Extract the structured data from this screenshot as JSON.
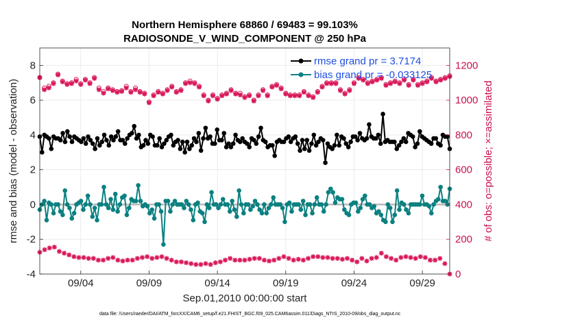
{
  "chart_data": {
    "type": "line",
    "title": "Northern Hemisphere 68860 / 69483 = 99.103%",
    "subtitle": "RADIOSONDE_V_WIND_COMPONENT @ 250 hPa",
    "xlabel": "Sep.01,2010 00:00:00 start",
    "ylabel": "rmse and bias (model - observation)",
    "ylabel_right": "# of obs: o=possible; ×=assimilated",
    "footer": "data file: /Users/raeder/DAI/ATM_forcXX/CAM6_setup/f.e21.FHIST_BGC.f09_025.CAM6assim.011/Diags_NTrS_2010-09/obs_diag_output.nc",
    "xlim": [
      0,
      30
    ],
    "ylim": [
      -4,
      9
    ],
    "ylim_right": [
      0,
      1300
    ],
    "grid": true,
    "legend_position": "top-right",
    "x_tick_values": [
      3,
      8,
      13,
      18,
      23,
      28
    ],
    "x_tick_labels": [
      "09/04",
      "09/09",
      "09/14",
      "09/19",
      "09/24",
      "09/29"
    ],
    "y_ticks": [
      -4,
      -2,
      0,
      2,
      4,
      6,
      8
    ],
    "y_ticks_right": [
      0,
      200,
      400,
      600,
      800,
      1000,
      1200
    ],
    "colors": {
      "rmse": "#000000",
      "bias": "#0b8080",
      "obs": "#d8185a",
      "zero_line": "#b8b8b8",
      "right_axis": "#c8104f",
      "legend_text": "#1f4fe0"
    },
    "series": [
      {
        "name": "rmse grand pr = 3.7174",
        "axis": "left",
        "values": [
          3.9,
          3.0,
          4.0,
          3.9,
          3.8,
          3.2,
          3.9,
          3.8,
          3.8,
          3.7,
          4.1,
          3.6,
          4.2,
          3.9,
          3.6,
          3.9,
          3.8,
          3.7,
          3.6,
          3.8,
          3.5,
          3.9,
          3.7,
          3.5,
          3.2,
          3.8,
          3.4,
          3.6,
          4.0,
          3.7,
          3.4,
          3.9,
          3.7,
          3.9,
          4.2,
          3.7,
          3.7,
          3.5,
          3.8,
          4.0,
          4.1,
          4.5,
          3.8,
          4.0,
          3.3,
          3.4,
          3.7,
          3.5,
          4.0,
          3.9,
          3.4,
          3.4,
          3.8,
          3.3,
          3.5,
          3.7,
          3.9,
          4.0,
          3.4,
          3.6,
          3.7,
          3.2,
          3.6,
          3.0,
          3.6,
          3.2,
          3.4,
          3.8,
          3.6,
          4.1,
          3.1,
          3.8,
          4.4,
          3.8,
          3.9,
          3.5,
          3.5,
          4.3,
          3.7,
          3.7,
          4.1,
          3.3,
          3.5,
          3.3,
          3.5,
          4.0,
          3.7,
          3.6,
          3.8,
          3.6,
          3.5,
          3.3,
          3.8,
          3.7,
          3.5,
          3.9,
          4.4,
          3.7,
          3.6,
          3.3,
          3.4,
          3.4,
          2.8,
          3.6,
          3.7,
          3.6,
          3.6,
          3.8,
          3.9,
          3.6,
          3.8,
          3.9,
          3.5,
          3.1,
          3.7,
          3.2,
          3.7,
          3.1,
          3.5,
          4.0,
          3.4,
          3.6,
          3.8,
          3.7,
          2.4,
          3.5,
          3.3,
          3.2,
          3.4,
          4.0,
          3.4,
          3.9,
          3.8,
          3.5,
          3.3,
          3.6,
          3.9,
          3.9,
          3.7,
          4.1,
          3.8,
          3.7,
          3.8,
          4.6,
          3.9,
          3.8,
          3.8,
          4.0,
          3.5,
          5.2,
          3.6,
          3.7,
          3.6,
          3.6,
          3.6,
          3.2,
          3.4,
          3.6,
          3.8,
          3.6,
          4.1,
          4.0,
          3.9,
          3.3,
          3.5,
          4.2,
          3.9,
          3.8,
          3.7,
          3.6,
          3.5,
          3.8,
          3.8,
          3.5,
          3.4,
          4.0,
          3.9,
          3.9,
          3.2
        ]
      },
      {
        "name": "bias grand pr = -0.033125",
        "axis": "left",
        "values": [
          -0.3,
          0.0,
          0.2,
          -0.9,
          0.1,
          0.0,
          -0.5,
          0.0,
          0.0,
          -0.4,
          -0.6,
          0.8,
          0.0,
          -0.2,
          -0.8,
          -0.5,
          0.0,
          0.1,
          0.2,
          -0.3,
          0.0,
          0.5,
          0.0,
          -0.7,
          -0.2,
          -0.9,
          0.0,
          0.0,
          1.0,
          0.0,
          -0.2,
          0.3,
          -0.3,
          0.6,
          -0.4,
          0.0,
          0.4,
          0.5,
          -0.6,
          -0.2,
          0.3,
          0.2,
          0.2,
          1.1,
          0.2,
          -0.1,
          0.0,
          -0.1,
          -0.5,
          -0.3,
          -0.8,
          0.0,
          0.0,
          -0.4,
          -2.3,
          0.2,
          0.2,
          -0.4,
          0.0,
          0.2,
          0.0,
          0.0,
          0.0,
          -0.2,
          0.2,
          0.0,
          -0.3,
          -0.9,
          0.0,
          0.1,
          -0.4,
          -0.5,
          -1.0,
          0.0,
          -0.2,
          0.7,
          0.0,
          0.0,
          -0.2,
          0.0,
          0.3,
          0.0,
          0.0,
          -0.4,
          0.2,
          -0.3,
          -0.7,
          0.8,
          0.0,
          -0.5,
          0.0,
          0.0,
          -0.3,
          -0.1,
          0.2,
          0.0,
          -0.3,
          -0.5,
          0.0,
          -0.5,
          -0.2,
          0.0,
          0.4,
          0.0,
          0.0,
          0.0,
          -0.2,
          -1.0,
          0.0,
          0.1,
          -0.4,
          0.0,
          0.0,
          0.0,
          -0.3,
          0.2,
          -0.6,
          0.0,
          0.0,
          -0.5,
          0.0,
          0.4,
          0.0,
          0.0,
          -0.4,
          0.0,
          0.7,
          0.9,
          0.7,
          0.1,
          0.4,
          0.3,
          0.3,
          -0.3,
          -0.5,
          -0.6,
          0.0,
          0.1,
          0.1,
          -0.4,
          -0.2,
          0.3,
          0.5,
          0.0,
          0.0,
          -0.2,
          -0.1,
          -0.5,
          -0.4,
          -0.6,
          -0.9,
          -1.0,
          0.0,
          -0.2,
          -1.0,
          -0.6,
          0.8,
          -0.3,
          0.1,
          0.0,
          -0.3,
          -0.5,
          0.0,
          0.0,
          0.0,
          0.0,
          0.0,
          0.5,
          0.0,
          0.0,
          -0.1,
          -0.5,
          0.0,
          0.2,
          0.3,
          1.0,
          0.2,
          0.2,
          0.0,
          0.9
        ]
      },
      {
        "name": "obs possible",
        "axis": "right",
        "marker": "circle",
        "values": [
          1130,
          1070,
          1080,
          1100,
          1150,
          1110,
          1095,
          1100,
          1120,
          1095,
          1120,
          1100,
          1130,
          1070,
          1050,
          1070,
          1060,
          1050,
          1055,
          1080,
          1050,
          1070,
          1050,
          1040,
          990,
          1030,
          1050,
          1040,
          1060,
          1080,
          1050,
          1060,
          1100,
          1110,
          1100,
          1080,
          1030,
          1000,
          1030,
          1010,
          1030,
          1040,
          1060,
          1040,
          1040,
          1020,
          1030,
          1000,
          1030,
          1060,
          1030,
          1080,
          1090,
          1070,
          1040,
          1030,
          1030,
          1030,
          1050,
          1030,
          1020,
          1050,
          1080,
          1100,
          1100,
          1100,
          1060,
          1040,
          1060,
          1100,
          1130,
          1120,
          1100,
          1110,
          1120,
          1130,
          1090,
          1100,
          1110,
          1100,
          1120,
          1090,
          1120,
          1090,
          1100,
          1110,
          1130,
          1110,
          1120,
          1130,
          1140
        ]
      },
      {
        "name": "obs assimilated",
        "axis": "right",
        "marker": "asterisk",
        "values": [
          1130,
          1060,
          1070,
          1095,
          1145,
          1105,
          1090,
          1095,
          1110,
          1090,
          1115,
          1095,
          1125,
          1060,
          1040,
          1065,
          1055,
          1045,
          1050,
          1070,
          1045,
          1060,
          1045,
          1035,
          985,
          1025,
          1045,
          1035,
          1055,
          1075,
          1045,
          1055,
          1095,
          1100,
          1095,
          1075,
          1025,
          995,
          1025,
          1005,
          1025,
          1035,
          1055,
          1035,
          1030,
          1015,
          1025,
          995,
          1025,
          1055,
          1025,
          1075,
          1085,
          1065,
          1035,
          1025,
          1025,
          1025,
          1045,
          1025,
          1015,
          1045,
          1075,
          1095,
          1095,
          1095,
          1055,
          1035,
          1055,
          1095,
          1125,
          1115,
          1095,
          1105,
          1115,
          1125,
          1085,
          1095,
          1105,
          1095,
          1115,
          1085,
          1115,
          1085,
          1095,
          1105,
          1125,
          1105,
          1115,
          1125,
          1135
        ]
      },
      {
        "name": "obs bottom",
        "axis": "right",
        "marker": "asterisk",
        "values": [
          125,
          140,
          150,
          155,
          130,
          120,
          110,
          100,
          95,
          95,
          90,
          90,
          80,
          80,
          90,
          95,
          80,
          75,
          80,
          80,
          90,
          95,
          100,
          90,
          95,
          100,
          90,
          80,
          70,
          70,
          65,
          60,
          55,
          55,
          60,
          55,
          65,
          70,
          80,
          90,
          80,
          80,
          80,
          85,
          90,
          90,
          80,
          75,
          80,
          90,
          100,
          90,
          80,
          85,
          80,
          90,
          100,
          100,
          95,
          95,
          90,
          90,
          85,
          90,
          80,
          70,
          90,
          75,
          90,
          95,
          120,
          100,
          90,
          80,
          95,
          100,
          95,
          90,
          100,
          95,
          80,
          80,
          90,
          60,
          0
        ]
      }
    ]
  }
}
